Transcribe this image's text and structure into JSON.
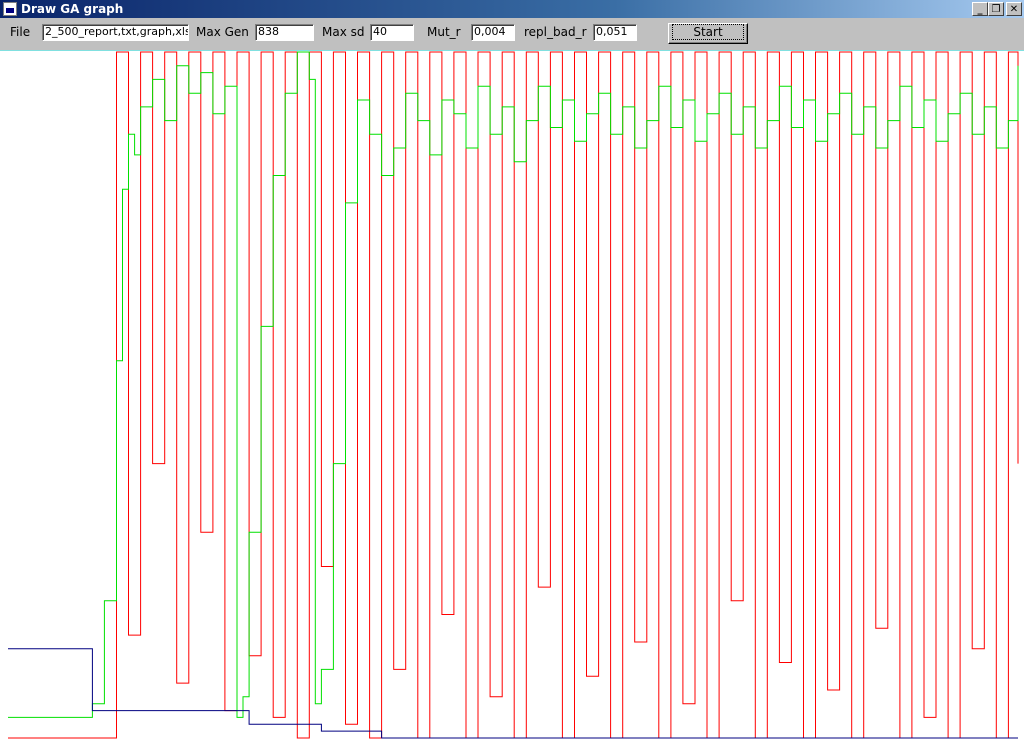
{
  "window": {
    "title": "Draw GA graph",
    "minimize_glyph": "_",
    "maximize_glyph": "❐",
    "close_glyph": "✕"
  },
  "toolbar": {
    "file_label": "File",
    "file_value": "2_500_report,txt,graph,xls",
    "max_gen_label": "Max Gen",
    "max_gen_value": "838",
    "max_sd_label": "Max sd",
    "max_sd_value": "40",
    "mut_r_label": "Mut_r",
    "mut_r_value": "0,004",
    "repl_bad_r_label": "repl_bad_r",
    "repl_bad_r_value": "0,051",
    "start_label": "Start"
  },
  "chart_data": {
    "type": "line",
    "title": "",
    "xlabel": "",
    "ylabel": "",
    "grid": false,
    "legend": "none",
    "xlim": [
      0,
      838
    ],
    "ylim": [
      0,
      100
    ],
    "series": [
      {
        "color": "#ff0000",
        "x": [
          0,
          80,
          90,
          100,
          110,
          120,
          130,
          140,
          150,
          160,
          170,
          180,
          190,
          200,
          210,
          220,
          230,
          240,
          250,
          260,
          270,
          280,
          290,
          300,
          310,
          320,
          330,
          340,
          350,
          360,
          370,
          380,
          390,
          400,
          410,
          420,
          430,
          440,
          450,
          460,
          470,
          480,
          490,
          500,
          510,
          520,
          530,
          540,
          550,
          560,
          570,
          580,
          590,
          600,
          610,
          620,
          630,
          640,
          650,
          660,
          670,
          680,
          690,
          700,
          710,
          720,
          730,
          740,
          750,
          760,
          770,
          780,
          790,
          800,
          810,
          820,
          830,
          838
        ],
        "y": [
          0,
          0,
          100,
          15,
          100,
          40,
          100,
          8,
          100,
          30,
          100,
          4,
          100,
          12,
          100,
          3,
          100,
          0,
          100,
          25,
          100,
          2,
          100,
          0,
          100,
          10,
          100,
          0,
          100,
          18,
          100,
          0,
          100,
          6,
          100,
          0,
          100,
          22,
          100,
          0,
          100,
          9,
          100,
          0,
          100,
          14,
          100,
          0,
          100,
          5,
          100,
          0,
          100,
          20,
          100,
          0,
          100,
          11,
          100,
          0,
          100,
          7,
          100,
          0,
          100,
          16,
          100,
          0,
          100,
          3,
          100,
          0,
          100,
          13,
          100,
          0,
          100,
          40
        ]
      },
      {
        "color": "#00e000",
        "x": [
          0,
          69,
          70,
          80,
          90,
          95,
          100,
          105,
          110,
          120,
          130,
          140,
          150,
          160,
          170,
          180,
          190,
          195,
          200,
          210,
          220,
          230,
          240,
          250,
          255,
          260,
          270,
          280,
          290,
          300,
          310,
          320,
          330,
          340,
          350,
          360,
          370,
          380,
          390,
          400,
          410,
          420,
          430,
          440,
          450,
          460,
          470,
          480,
          490,
          500,
          510,
          520,
          530,
          540,
          550,
          560,
          570,
          580,
          590,
          600,
          610,
          620,
          630,
          640,
          650,
          660,
          670,
          680,
          690,
          700,
          710,
          720,
          730,
          740,
          750,
          760,
          770,
          780,
          790,
          800,
          810,
          820,
          830,
          838
        ],
        "y": [
          3,
          3,
          5,
          20,
          55,
          80,
          88,
          85,
          92,
          96,
          90,
          98,
          94,
          97,
          91,
          95,
          3,
          6,
          30,
          60,
          82,
          94,
          100,
          96,
          5,
          10,
          40,
          78,
          93,
          88,
          82,
          86,
          94,
          90,
          85,
          93,
          91,
          86,
          95,
          88,
          92,
          84,
          90,
          95,
          89,
          93,
          87,
          91,
          94,
          88,
          92,
          86,
          90,
          95,
          89,
          93,
          87,
          91,
          94,
          88,
          92,
          86,
          90,
          95,
          89,
          93,
          87,
          91,
          94,
          88,
          92,
          86,
          90,
          95,
          89,
          93,
          87,
          91,
          94,
          88,
          92,
          86,
          90,
          98
        ]
      },
      {
        "color": "#000080",
        "x": [
          0,
          69,
          70,
          195,
          200,
          255,
          260,
          300,
          310,
          838
        ],
        "y": [
          13,
          13,
          4,
          4,
          2,
          2,
          1,
          1,
          0,
          0
        ]
      }
    ]
  }
}
